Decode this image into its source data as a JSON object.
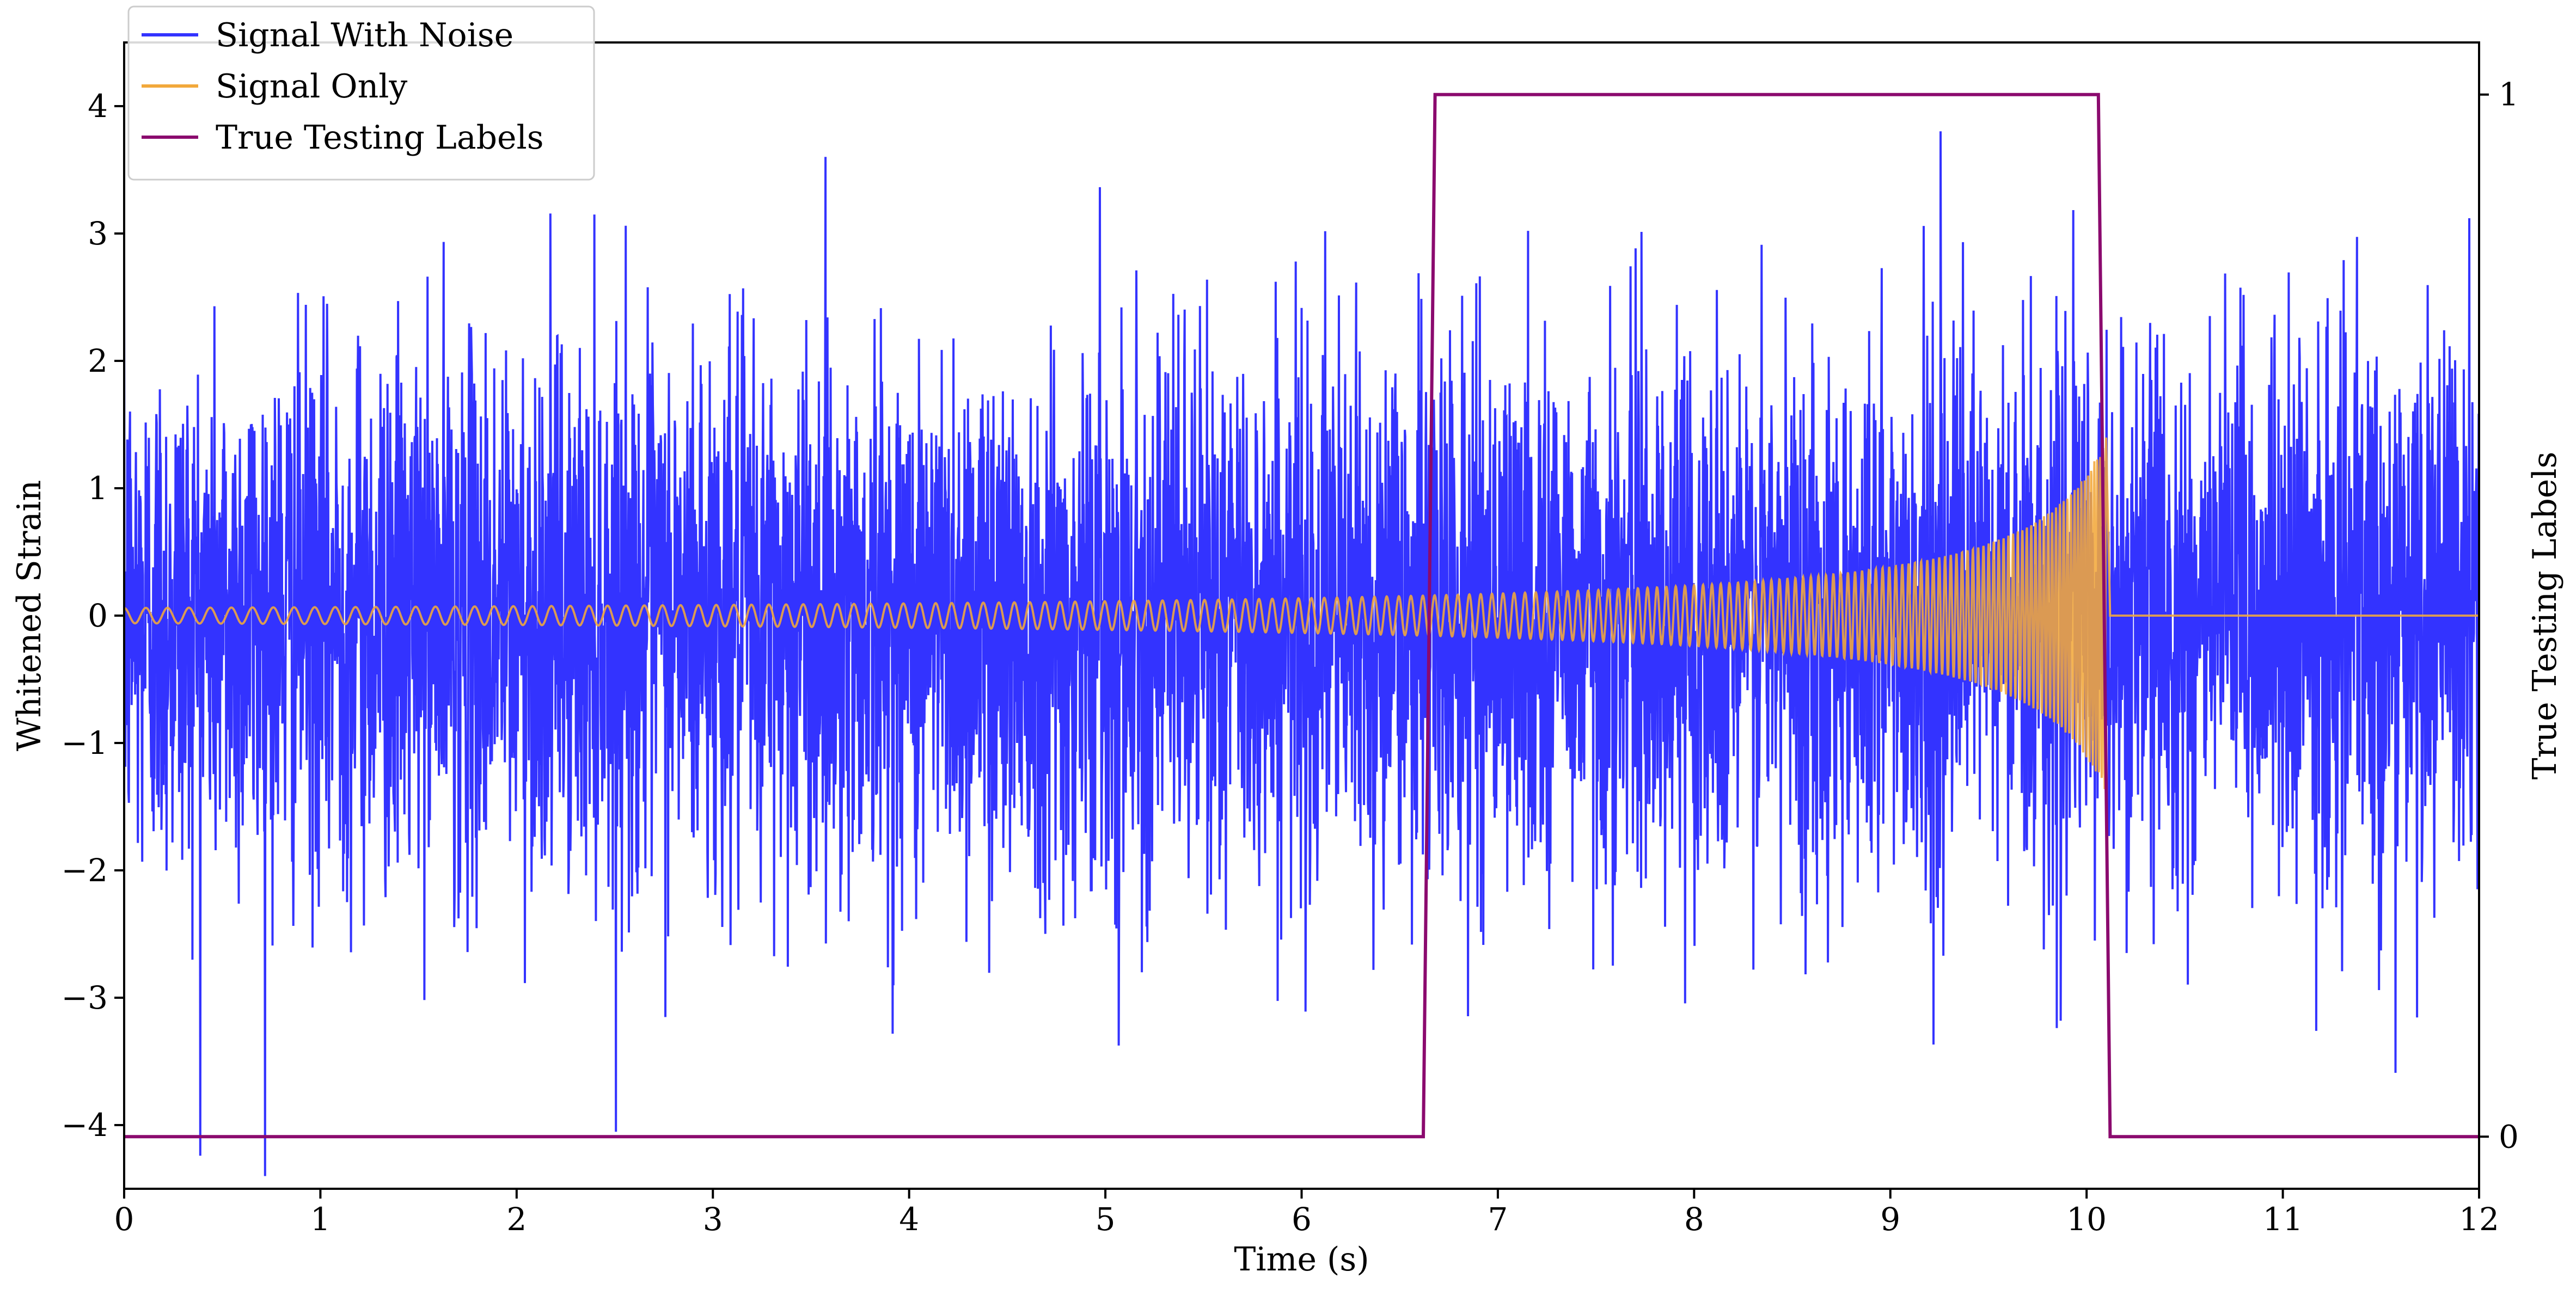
{
  "chart_data": {
    "type": "line",
    "xlabel": "Time (s)",
    "ylabel": "Whitened Strain",
    "y2label": "True Testing Labels",
    "xlim": [
      0,
      12
    ],
    "ylim": [
      -4.5,
      4.5
    ],
    "y2lim": [
      -0.05,
      1.05
    ],
    "x_ticks": [
      0,
      1,
      2,
      3,
      4,
      5,
      6,
      7,
      8,
      9,
      10,
      11,
      12
    ],
    "y_ticks": [
      -4,
      -3,
      -2,
      -1,
      0,
      1,
      2,
      3,
      4
    ],
    "y_tick_labels": [
      "−4",
      "−3",
      "−2",
      "−1",
      "0",
      "1",
      "2",
      "3",
      "4"
    ],
    "y2_ticks": [
      0,
      1
    ],
    "grid": false,
    "legend_position": "top-left",
    "series": [
      {
        "name": "Signal With Noise",
        "color": "#3333ff",
        "description": "white noise, amplitude roughly within ±4",
        "sample_rate_hz": 500,
        "noise_std": 1.05,
        "x_range": [
          0,
          12
        ]
      },
      {
        "name": "Signal Only",
        "color": "#f2a83b",
        "chirp": {
          "start": 0,
          "end": 10.1,
          "start_amplitude": 0.06,
          "peak_amplitude": 1.4,
          "start_frequency_hz": 9,
          "end_frequency_hz": 70
        },
        "after_value": 0
      },
      {
        "name": "True Testing Labels",
        "color": "#8b0a6e",
        "axis": "right",
        "x": [
          0,
          6.62,
          6.68,
          10.06,
          10.12,
          12
        ],
        "y": [
          0,
          0,
          1,
          1,
          0,
          0
        ]
      }
    ]
  }
}
